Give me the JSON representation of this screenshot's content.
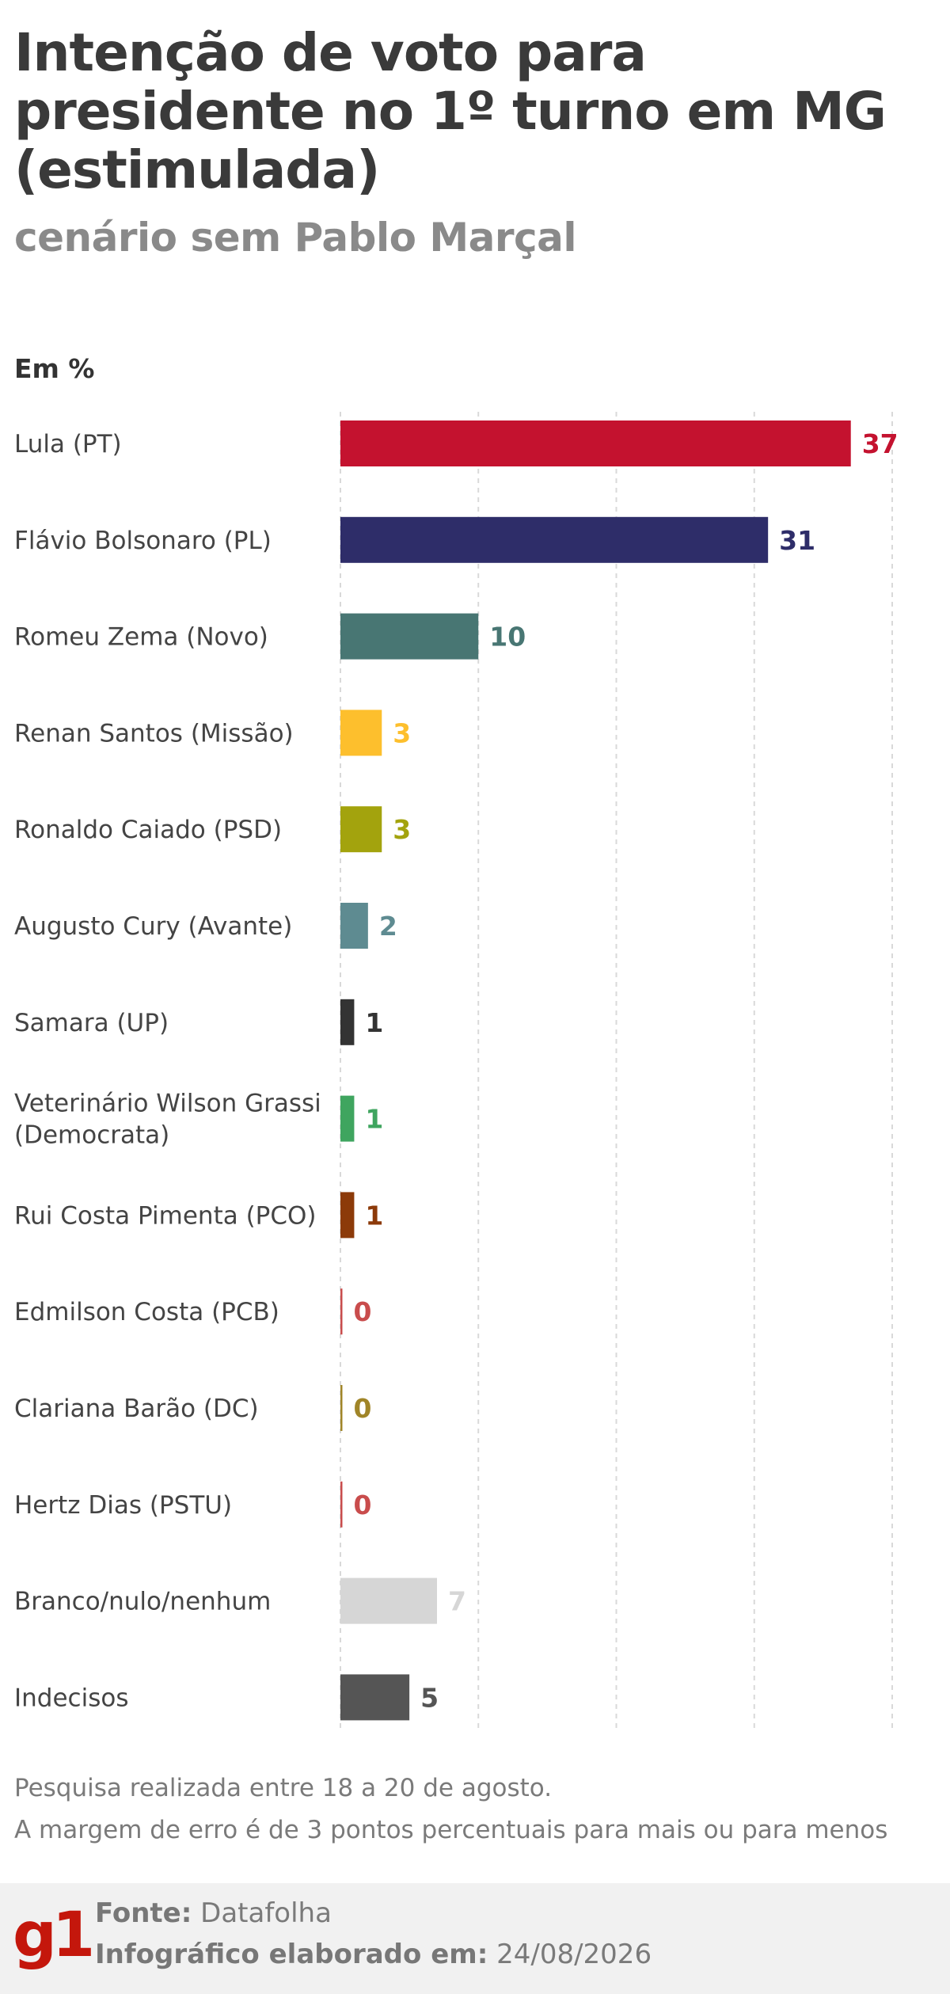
{
  "header": {
    "title": "Intenção de voto para presidente no 1º turno em MG (estimulada)",
    "subtitle": "cenário sem Pablo Marçal",
    "unit": "Em %"
  },
  "chart_data": {
    "type": "bar",
    "orientation": "horizontal",
    "xlim": [
      0,
      40
    ],
    "grid": true,
    "categories": [
      "Lula (PT)",
      "Flávio Bolsonaro (PL)",
      "Romeu Zema (Novo)",
      "Renan Santos (Missão)",
      "Ronaldo Caiado (PSD)",
      "Augusto Cury (Avante)",
      "Samara (UP)",
      "Veterinário Wilson Grassi (Democrata)",
      "Rui Costa Pimenta (PCO)",
      "Edmilson Costa (PCB)",
      "Clariana Barão (DC)",
      "Hertz Dias (PSTU)",
      "Branco/nulo/nenhum",
      "Indecisos"
    ],
    "label_lines": [
      [
        "Lula (PT)"
      ],
      [
        "Flávio Bolsonaro (PL)"
      ],
      [
        "Romeu Zema (Novo)"
      ],
      [
        "Renan Santos (Missão)"
      ],
      [
        "Ronaldo Caiado (PSD)"
      ],
      [
        "Augusto Cury (Avante)"
      ],
      [
        "Samara (UP)"
      ],
      [
        "Veterinário Wilson Grassi",
        "(Democrata)"
      ],
      [
        "Rui Costa Pimenta (PCO)"
      ],
      [
        "Edmilson Costa (PCB)"
      ],
      [
        "Clariana Barão (DC)"
      ],
      [
        "Hertz Dias (PSTU)"
      ],
      [
        "Branco/nulo/nenhum"
      ],
      [
        "Indecisos"
      ]
    ],
    "values": [
      37,
      31,
      10,
      3,
      3,
      2,
      1,
      1,
      1,
      0,
      0,
      0,
      7,
      5
    ],
    "colors": [
      "#c4122f",
      "#2e2d69",
      "#487673",
      "#fdbf2d",
      "#a3a30d",
      "#5e8b91",
      "#333333",
      "#3fa55f",
      "#8c3a09",
      "#c94c4c",
      "#a08528",
      "#c94c4c",
      "#d6d6d6",
      "#555555"
    ]
  },
  "notes": {
    "line1": "Pesquisa realizada entre 18 a 20 de agosto.",
    "line2": "A margem de erro é de 3 pontos percentuais para mais ou para menos"
  },
  "footer": {
    "logo": "g1",
    "source_label": "Fonte:",
    "source_value": "Datafolha",
    "date_label": "Infográfico elaborado em:",
    "date_value": "24/08/2026"
  }
}
